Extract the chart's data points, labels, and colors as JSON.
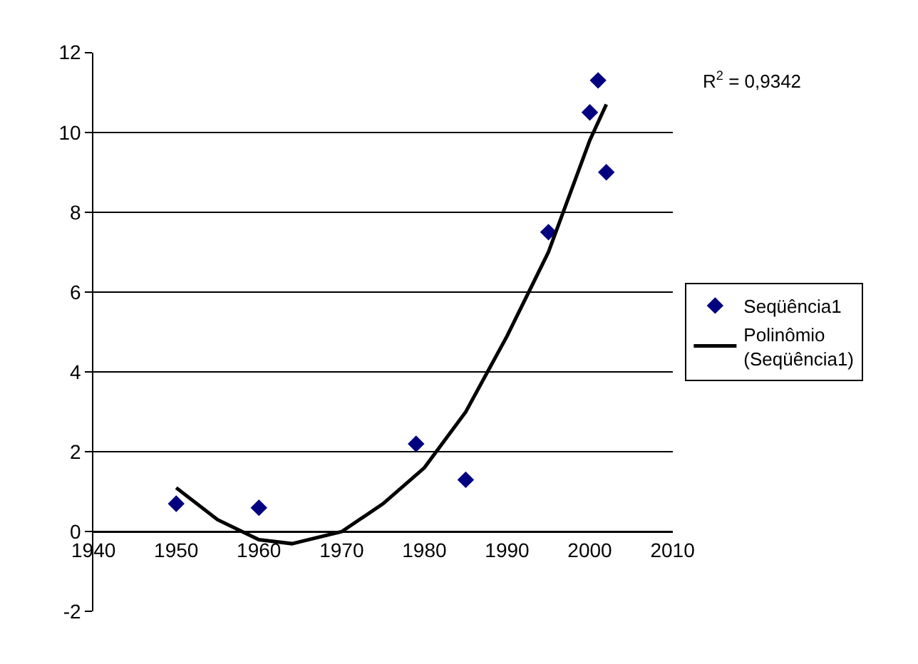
{
  "chart_data": {
    "type": "scatter",
    "series": [
      {
        "name": "Seqüência1",
        "color": "#000080",
        "marker": "diamond",
        "x": [
          1950,
          1960,
          1979,
          1985,
          1995,
          2000,
          2001,
          2002
        ],
        "values": [
          0.7,
          0.6,
          2.2,
          1.3,
          7.5,
          10.5,
          11.3,
          9.0
        ]
      },
      {
        "name": "Polinômio (Seqüência1)",
        "type": "line",
        "color": "#000000",
        "marker": "none",
        "line_style": "solid",
        "x": [
          1950,
          1955,
          1960,
          1964,
          1970,
          1975,
          1980,
          1985,
          1990,
          1995,
          2000,
          2002
        ],
        "values": [
          1.1,
          0.3,
          -0.2,
          -0.3,
          0.0,
          0.7,
          1.6,
          3.0,
          4.9,
          7.0,
          9.8,
          10.7
        ]
      }
    ],
    "xlim": [
      1940,
      2010
    ],
    "xticks": [
      1940,
      1950,
      1960,
      1970,
      1980,
      1990,
      2000,
      2010
    ],
    "ylim": [
      -2,
      12
    ],
    "yticks": [
      -2,
      0,
      2,
      4,
      6,
      8,
      10,
      12
    ],
    "grid": "y",
    "legend": "right",
    "annotations": [
      "R$^{2}$ = 0,9342"
    ]
  }
}
